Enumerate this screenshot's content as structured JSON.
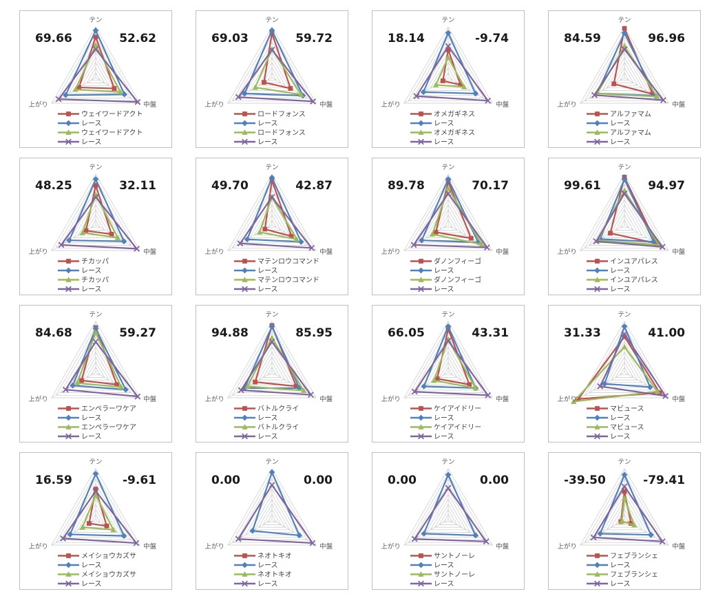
{
  "palette": {
    "series1": "#c0504d",
    "series2": "#4f81bd",
    "series3": "#9bbb59",
    "series4": "#8064a2",
    "grid": "#c9c9c9",
    "axis_label": "#595959",
    "number": "#1a1a1a",
    "cell_border": "#bfbfbf",
    "background": "#ffffff"
  },
  "layout": {
    "rings": 10,
    "grid_cols": 4,
    "grid_rows": 4
  },
  "axes": [
    "テン",
    "中盤",
    "上がり"
  ],
  "race_label": "レース",
  "chart_data": [
    {
      "type": "radar",
      "left_value": "69.66",
      "right_value": "52.62",
      "axes": [
        "テン",
        "中盤",
        "上がり"
      ],
      "series": [
        {
          "name": "ウェイワードアクト",
          "marker": "square",
          "values": [
            0.8,
            0.42,
            0.38
          ]
        },
        {
          "name": "レース",
          "marker": "diamond",
          "values": [
            0.93,
            0.65,
            0.68
          ]
        },
        {
          "name": "ウェイワードアクト",
          "marker": "triangle",
          "values": [
            0.64,
            0.56,
            0.46
          ]
        },
        {
          "name": "レース",
          "marker": "x",
          "values": [
            0.56,
            0.95,
            0.84
          ]
        }
      ]
    },
    {
      "type": "radar",
      "left_value": "69.03",
      "right_value": "59.72",
      "axes": [
        "テン",
        "中盤",
        "上がり"
      ],
      "series": [
        {
          "name": "ロードフォンス",
          "marker": "square",
          "values": [
            0.88,
            0.42,
            0.18
          ]
        },
        {
          "name": "レース",
          "marker": "diamond",
          "values": [
            0.93,
            0.7,
            0.62
          ]
        },
        {
          "name": "ロードフォンス",
          "marker": "triangle",
          "values": [
            0.56,
            0.66,
            0.38
          ]
        },
        {
          "name": "レース",
          "marker": "x",
          "values": [
            0.55,
            0.93,
            0.76
          ]
        }
      ]
    },
    {
      "type": "radar",
      "left_value": "18.14",
      "right_value": "-9.74",
      "axes": [
        "テン",
        "中盤",
        "上がり"
      ],
      "series": [
        {
          "name": "オメガギネス",
          "marker": "square",
          "values": [
            0.55,
            0.28,
            0.12
          ]
        },
        {
          "name": "レース",
          "marker": "diamond",
          "values": [
            0.88,
            0.62,
            0.56
          ]
        },
        {
          "name": "オメガギネス",
          "marker": "triangle",
          "values": [
            0.4,
            0.36,
            0.28
          ]
        },
        {
          "name": "レース",
          "marker": "x",
          "values": [
            0.62,
            0.9,
            0.72
          ]
        }
      ]
    },
    {
      "type": "radar",
      "left_value": "84.59",
      "right_value": "96.96",
      "axes": [
        "テン",
        "中盤",
        "上がり"
      ],
      "series": [
        {
          "name": "アルファマム",
          "marker": "square",
          "values": [
            0.97,
            0.64,
            0.24
          ]
        },
        {
          "name": "レース",
          "marker": "diamond",
          "values": [
            0.88,
            0.7,
            0.62
          ]
        },
        {
          "name": "アルファマム",
          "marker": "triangle",
          "values": [
            0.62,
            0.74,
            0.62
          ]
        },
        {
          "name": "レース",
          "marker": "x",
          "values": [
            0.56,
            0.88,
            0.68
          ]
        }
      ]
    },
    {
      "type": "radar",
      "left_value": "48.25",
      "right_value": "32.11",
      "axes": [
        "テン",
        "中盤",
        "上がり"
      ],
      "series": [
        {
          "name": "チカッパ",
          "marker": "square",
          "values": [
            0.78,
            0.36,
            0.22
          ]
        },
        {
          "name": "レース",
          "marker": "diamond",
          "values": [
            0.9,
            0.64,
            0.6
          ]
        },
        {
          "name": "チカッパ",
          "marker": "triangle",
          "values": [
            0.6,
            0.5,
            0.3
          ]
        },
        {
          "name": "レース",
          "marker": "x",
          "values": [
            0.55,
            0.93,
            0.78
          ]
        }
      ]
    },
    {
      "type": "radar",
      "left_value": "49.70",
      "right_value": "42.87",
      "axes": [
        "テン",
        "中盤",
        "上がり"
      ],
      "series": [
        {
          "name": "マテンロウコマンド",
          "marker": "square",
          "values": [
            0.88,
            0.44,
            0.16
          ]
        },
        {
          "name": "レース",
          "marker": "diamond",
          "values": [
            0.93,
            0.66,
            0.56
          ]
        },
        {
          "name": "マテンロウコマンド",
          "marker": "triangle",
          "values": [
            0.55,
            0.56,
            0.28
          ]
        },
        {
          "name": "レース",
          "marker": "x",
          "values": [
            0.55,
            0.9,
            0.72
          ]
        }
      ]
    },
    {
      "type": "radar",
      "left_value": "89.78",
      "right_value": "70.17",
      "axes": [
        "テン",
        "中盤",
        "上がり"
      ],
      "series": [
        {
          "name": "ダノンフィーゴ",
          "marker": "square",
          "values": [
            0.85,
            0.52,
            0.28
          ]
        },
        {
          "name": "レース",
          "marker": "diamond",
          "values": [
            0.9,
            0.68,
            0.6
          ]
        },
        {
          "name": "ダノンフィーゴ",
          "marker": "triangle",
          "values": [
            0.72,
            0.76,
            0.36
          ]
        },
        {
          "name": "レース",
          "marker": "x",
          "values": [
            0.62,
            0.88,
            0.78
          ]
        }
      ]
    },
    {
      "type": "radar",
      "left_value": "99.61",
      "right_value": "94.97",
      "axes": [
        "テン",
        "中盤",
        "上がり"
      ],
      "series": [
        {
          "name": "インユアパレス",
          "marker": "square",
          "values": [
            0.94,
            0.72,
            0.32
          ]
        },
        {
          "name": "レース",
          "marker": "diamond",
          "values": [
            0.9,
            0.66,
            0.55
          ]
        },
        {
          "name": "インユアパレス",
          "marker": "triangle",
          "values": [
            0.68,
            0.78,
            0.6
          ]
        },
        {
          "name": "レース",
          "marker": "x",
          "values": [
            0.62,
            0.86,
            0.64
          ]
        }
      ]
    },
    {
      "type": "radar",
      "left_value": "84.68",
      "right_value": "59.27",
      "axes": [
        "テン",
        "中盤",
        "上がり"
      ],
      "series": [
        {
          "name": "エンペラーワケア",
          "marker": "square",
          "values": [
            0.88,
            0.48,
            0.32
          ]
        },
        {
          "name": "レース",
          "marker": "diamond",
          "values": [
            0.86,
            0.68,
            0.52
          ]
        },
        {
          "name": "エンペラーワケア",
          "marker": "triangle",
          "values": [
            0.78,
            0.58,
            0.42
          ]
        },
        {
          "name": "レース",
          "marker": "x",
          "values": [
            0.6,
            0.95,
            0.68
          ]
        }
      ]
    },
    {
      "type": "radar",
      "left_value": "94.88",
      "right_value": "85.95",
      "axes": [
        "テン",
        "中盤",
        "上がり"
      ],
      "series": [
        {
          "name": "バトルクライ",
          "marker": "square",
          "values": [
            0.92,
            0.55,
            0.38
          ]
        },
        {
          "name": "レース",
          "marker": "diamond",
          "values": [
            0.9,
            0.62,
            0.62
          ]
        },
        {
          "name": "バトルクライ",
          "marker": "triangle",
          "values": [
            0.68,
            0.72,
            0.55
          ]
        },
        {
          "name": "レース",
          "marker": "x",
          "values": [
            0.6,
            0.88,
            0.7
          ]
        }
      ]
    },
    {
      "type": "radar",
      "left_value": "66.05",
      "right_value": "43.31",
      "axes": [
        "テン",
        "中盤",
        "上がり"
      ],
      "series": [
        {
          "name": "ケイアイドリー",
          "marker": "square",
          "values": [
            0.85,
            0.48,
            0.25
          ]
        },
        {
          "name": "レース",
          "marker": "diamond",
          "values": [
            0.9,
            0.62,
            0.55
          ]
        },
        {
          "name": "ケイアイドリー",
          "marker": "triangle",
          "values": [
            0.65,
            0.62,
            0.32
          ]
        },
        {
          "name": "レース",
          "marker": "x",
          "values": [
            0.62,
            0.9,
            0.76
          ]
        }
      ]
    },
    {
      "type": "radar",
      "left_value": "31.33",
      "right_value": "41.00",
      "axes": [
        "テン",
        "中盤",
        "上がり"
      ],
      "series": [
        {
          "name": "マビュース",
          "marker": "square",
          "values": [
            0.7,
            0.8,
            1.05
          ]
        },
        {
          "name": "レース",
          "marker": "diamond",
          "values": [
            0.9,
            0.58,
            0.45
          ]
        },
        {
          "name": "マビュース",
          "marker": "triangle",
          "values": [
            0.5,
            0.75,
            1.15
          ]
        },
        {
          "name": "レース",
          "marker": "x",
          "values": [
            0.75,
            0.93,
            0.55
          ]
        }
      ]
    },
    {
      "type": "radar",
      "left_value": "16.59",
      "right_value": "-9.61",
      "axes": [
        "テン",
        "中盤",
        "上がり"
      ],
      "series": [
        {
          "name": "メイショウカズサ",
          "marker": "square",
          "values": [
            0.6,
            0.25,
            0.15
          ]
        },
        {
          "name": "レース",
          "marker": "diamond",
          "values": [
            0.9,
            0.64,
            0.58
          ]
        },
        {
          "name": "メイショウカズサ",
          "marker": "triangle",
          "values": [
            0.48,
            0.4,
            0.3
          ]
        },
        {
          "name": "レース",
          "marker": "x",
          "values": [
            0.56,
            0.92,
            0.74
          ]
        }
      ]
    },
    {
      "type": "radar",
      "left_value": "0.00",
      "right_value": "0.00",
      "axes": [
        "テン",
        "中盤",
        "上がり"
      ],
      "series": [
        {
          "name": "ネオトキオ",
          "marker": "square",
          "values": [
            0,
            0,
            0
          ]
        },
        {
          "name": "レース",
          "marker": "diamond",
          "values": [
            0.93,
            0.62,
            0.44
          ]
        },
        {
          "name": "ネオトキオ",
          "marker": "triangle",
          "values": [
            0,
            0,
            0
          ]
        },
        {
          "name": "レース",
          "marker": "x",
          "values": [
            0.68,
            0.92,
            0.76
          ]
        }
      ]
    },
    {
      "type": "radar",
      "left_value": "0.00",
      "right_value": "0.00",
      "axes": [
        "テン",
        "中盤",
        "上がり"
      ],
      "series": [
        {
          "name": "サントノーレ",
          "marker": "square",
          "values": [
            0,
            0,
            0
          ]
        },
        {
          "name": "レース",
          "marker": "diamond",
          "values": [
            0.88,
            0.62,
            0.55
          ]
        },
        {
          "name": "サントノーレ",
          "marker": "triangle",
          "values": [
            0,
            0,
            0
          ]
        },
        {
          "name": "レース",
          "marker": "x",
          "values": [
            0.62,
            0.86,
            0.76
          ]
        }
      ]
    },
    {
      "type": "radar",
      "left_value": "-39.50",
      "right_value": "-79.41",
      "axes": [
        "テン",
        "中盤",
        "上がり"
      ],
      "series": [
        {
          "name": "フェブランシェ",
          "marker": "square",
          "values": [
            0.55,
            0.15,
            0.08
          ]
        },
        {
          "name": "レース",
          "marker": "diamond",
          "values": [
            0.88,
            0.6,
            0.55
          ]
        },
        {
          "name": "フェブランシェ",
          "marker": "triangle",
          "values": [
            0.42,
            0.22,
            0.06
          ]
        },
        {
          "name": "レース",
          "marker": "x",
          "values": [
            0.65,
            0.86,
            0.7
          ]
        }
      ]
    }
  ]
}
